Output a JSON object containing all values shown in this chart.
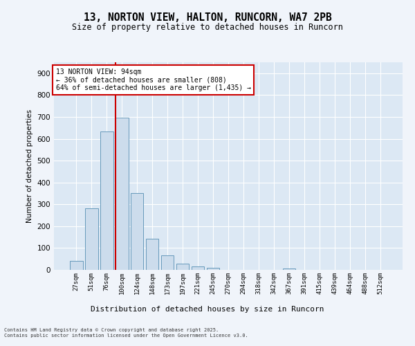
{
  "title": "13, NORTON VIEW, HALTON, RUNCORN, WA7 2PB",
  "subtitle": "Size of property relative to detached houses in Runcorn",
  "xlabel": "Distribution of detached houses by size in Runcorn",
  "ylabel": "Number of detached properties",
  "bar_labels": [
    "27sqm",
    "51sqm",
    "76sqm",
    "100sqm",
    "124sqm",
    "148sqm",
    "173sqm",
    "197sqm",
    "221sqm",
    "245sqm",
    "270sqm",
    "294sqm",
    "318sqm",
    "342sqm",
    "367sqm",
    "391sqm",
    "415sqm",
    "439sqm",
    "464sqm",
    "488sqm",
    "512sqm"
  ],
  "bar_values": [
    42,
    282,
    632,
    698,
    350,
    143,
    65,
    28,
    15,
    11,
    0,
    0,
    0,
    0,
    5,
    0,
    0,
    0,
    0,
    0,
    0
  ],
  "bar_color": "#ccdcec",
  "bar_edge_color": "#6699bb",
  "vline_index": 3,
  "vline_color": "#cc0000",
  "annotation_text": "13 NORTON VIEW: 94sqm\n← 36% of detached houses are smaller (808)\n64% of semi-detached houses are larger (1,435) →",
  "annotation_box_facecolor": "#ffffff",
  "annotation_box_edgecolor": "#cc0000",
  "ylim": [
    0,
    950
  ],
  "yticks": [
    0,
    100,
    200,
    300,
    400,
    500,
    600,
    700,
    800,
    900
  ],
  "fig_bg_color": "#f0f4fa",
  "ax_bg_color": "#dce8f4",
  "grid_color": "#ffffff",
  "footer_line1": "Contains HM Land Registry data © Crown copyright and database right 2025.",
  "footer_line2": "Contains public sector information licensed under the Open Government Licence v3.0."
}
